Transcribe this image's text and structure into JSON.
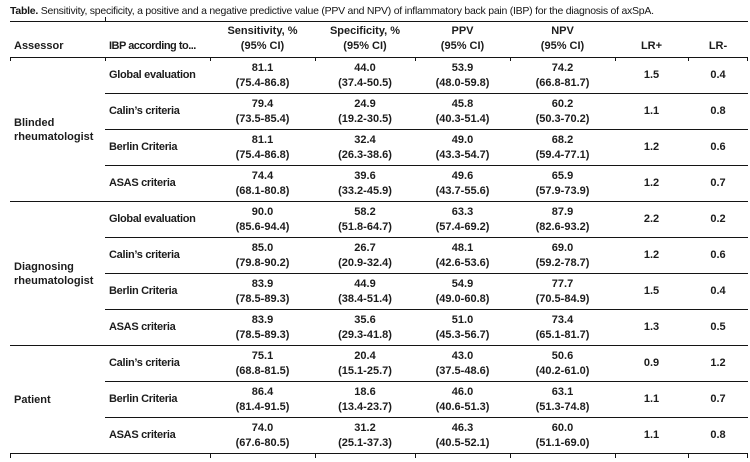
{
  "title": {
    "label": "Table.",
    "text": " Sensitivity, specificity, a positive and a negative predictive value (PPV and NPV) of inflammatory back pain (IBP) for the diagnosis of axSpA."
  },
  "columns": {
    "assessor": "Assessor",
    "ibp": "IBP according to...",
    "sensitivity": "Sensitivity, %",
    "specificity": "Specificity, %",
    "ppv": "PPV",
    "npv": "NPV",
    "ci": "(95% CI)",
    "lr_plus": "LR+",
    "lr_minus": "LR-"
  },
  "sections": [
    {
      "assessor": "Blinded rheumatologist",
      "rows": [
        {
          "criteria": "Global evaluation",
          "sens": "81.1",
          "sens_ci": "(75.4-86.8)",
          "spec": "44.0",
          "spec_ci": "(37.4-50.5)",
          "ppv": "53.9",
          "ppv_ci": "(48.0-59.8)",
          "npv": "74.2",
          "npv_ci": "(66.8-81.7)",
          "lr_plus": "1.5",
          "lr_minus": "0.4"
        },
        {
          "criteria": "Calin’s criteria",
          "sens": "79.4",
          "sens_ci": "(73.5-85.4)",
          "spec": "24.9",
          "spec_ci": "(19.2-30.5)",
          "ppv": "45.8",
          "ppv_ci": "(40.3-51.4)",
          "npv": "60.2",
          "npv_ci": "(50.3-70.2)",
          "lr_plus": "1.1",
          "lr_minus": "0.8"
        },
        {
          "criteria": "Berlin Criteria",
          "sens": "81.1",
          "sens_ci": "(75.4-86.8)",
          "spec": "32.4",
          "spec_ci": "(26.3-38.6)",
          "ppv": "49.0",
          "ppv_ci": "(43.3-54.7)",
          "npv": "68.2",
          "npv_ci": "(59.4-77.1)",
          "lr_plus": "1.2",
          "lr_minus": "0.6"
        },
        {
          "criteria": "ASAS criteria",
          "sens": "74.4",
          "sens_ci": "(68.1-80.8)",
          "spec": "39.6",
          "spec_ci": "(33.2-45.9)",
          "ppv": "49.6",
          "ppv_ci": "(43.7-55.6)",
          "npv": "65.9",
          "npv_ci": "(57.9-73.9)",
          "lr_plus": "1.2",
          "lr_minus": "0.7"
        }
      ]
    },
    {
      "assessor": "Diagnosing rheumatologist",
      "rows": [
        {
          "criteria": "Global evaluation",
          "sens": "90.0",
          "sens_ci": "(85.6-94.4)",
          "spec": "58.2",
          "spec_ci": "(51.8-64.7)",
          "ppv": "63.3",
          "ppv_ci": "(57.4-69.2)",
          "npv": "87.9",
          "npv_ci": "(82.6-93.2)",
          "lr_plus": "2.2",
          "lr_minus": "0.2"
        },
        {
          "criteria": "Calin’s criteria",
          "sens": "85.0",
          "sens_ci": "(79.8-90.2)",
          "spec": "26.7",
          "spec_ci": "(20.9-32.4)",
          "ppv": "48.1",
          "ppv_ci": "(42.6-53.6)",
          "npv": "69.0",
          "npv_ci": "(59.2-78.7)",
          "lr_plus": "1.2",
          "lr_minus": "0.6"
        },
        {
          "criteria": "Berlin Criteria",
          "sens": "83.9",
          "sens_ci": "(78.5-89.3)",
          "spec": "44.9",
          "spec_ci": "(38.4-51.4)",
          "ppv": "54.9",
          "ppv_ci": "(49.0-60.8)",
          "npv": "77.7",
          "npv_ci": "(70.5-84.9)",
          "lr_plus": "1.5",
          "lr_minus": "0.4"
        },
        {
          "criteria": "ASAS criteria",
          "sens": "83.9",
          "sens_ci": "(78.5-89.3)",
          "spec": "35.6",
          "spec_ci": "(29.3-41.8)",
          "ppv": "51.0",
          "ppv_ci": "(45.3-56.7)",
          "npv": "73.4",
          "npv_ci": "(65.1-81.7)",
          "lr_plus": "1.3",
          "lr_minus": "0.5"
        }
      ]
    },
    {
      "assessor": "Patient",
      "rows": [
        {
          "criteria": "Calin’s criteria",
          "sens": "75.1",
          "sens_ci": "(68.8-81.5)",
          "spec": "20.4",
          "spec_ci": "(15.1-25.7)",
          "ppv": "43.0",
          "ppv_ci": "(37.5-48.6)",
          "npv": "50.6",
          "npv_ci": "(40.2-61.0)",
          "lr_plus": "0.9",
          "lr_minus": "1.2"
        },
        {
          "criteria": "Berlin Criteria",
          "sens": "86.4",
          "sens_ci": "(81.4-91.5)",
          "spec": "18.6",
          "spec_ci": "(13.4-23.7)",
          "ppv": "46.0",
          "ppv_ci": "(40.6-51.3)",
          "npv": "63.1",
          "npv_ci": "(51.3-74.8)",
          "lr_plus": "1.1",
          "lr_minus": "0.7"
        },
        {
          "criteria": "ASAS criteria",
          "sens": "74.0",
          "sens_ci": "(67.6-80.5)",
          "spec": "31.2",
          "spec_ci": "(25.1-37.3)",
          "ppv": "46.3",
          "ppv_ci": "(40.5-52.1)",
          "npv": "60.0",
          "npv_ci": "(51.1-69.0)",
          "lr_plus": "1.1",
          "lr_minus": "0.8"
        }
      ]
    }
  ]
}
